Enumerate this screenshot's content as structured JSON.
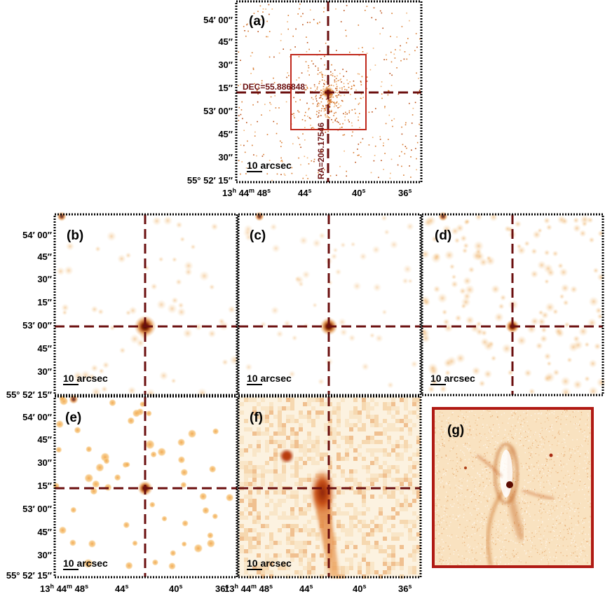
{
  "panels": [
    {
      "id": "a",
      "label": "(a)",
      "scalebar": "10 arcsec",
      "dec_label": "DEC=55.886848",
      "ra_label": "RA=206.17546"
    },
    {
      "id": "b",
      "label": "(b)",
      "scalebar": "10 arcsec"
    },
    {
      "id": "c",
      "label": "(c)",
      "scalebar": "10 arcsec"
    },
    {
      "id": "d",
      "label": "(d)",
      "scalebar": "10 arcsec"
    },
    {
      "id": "e",
      "label": "(e)",
      "scalebar": "10 arcsec"
    },
    {
      "id": "f",
      "label": "(f)",
      "scalebar": "10 arcsec"
    },
    {
      "id": "g",
      "label": "(g)"
    }
  ],
  "dec_ticks_top": [
    "54′ 00″",
    "45″",
    "30″",
    "15″",
    "53′ 00″",
    "45″",
    "30″",
    "55° 52′ 15″"
  ],
  "dec_ticks_mid": [
    "54′ 00″",
    "45″",
    "30″",
    "15″",
    "53′ 00″",
    "45″",
    "30″",
    "55° 52′ 15″"
  ],
  "dec_ticks_bot": [
    "54′ 00″",
    "45″",
    "30″",
    "15″",
    "53′ 00″",
    "45″",
    "30″",
    "55° 52′ 15″"
  ],
  "ra_ticks_top": {
    "h": "13",
    "h_sup": "h",
    "m": " 44",
    "m_sup": "m",
    "s48": " 48",
    "s": "s",
    "s44": "44",
    "s40": "40",
    "s36": "36"
  },
  "ra_ticks_e": {
    "h": "13",
    "h_sup": "h",
    "m": " 44",
    "m_sup": "m",
    "s48": " 48",
    "s": "s",
    "s44": "44",
    "s40": "40",
    "s36": "36"
  },
  "ra_ticks_f": {
    "h": "13",
    "h_sup": "h",
    "m": " 44",
    "m_sup": "m",
    "s48": " 48",
    "s": "s",
    "s44": "44",
    "s40": "40",
    "s36": "36"
  },
  "colors": {
    "cross": "#6b0f0f",
    "box": "#c0281c",
    "frame": "#000000",
    "g_frame": "#b01a14",
    "bright": "#c85a10",
    "mid": "#e8a040",
    "faint": "#f6d8a8"
  }
}
